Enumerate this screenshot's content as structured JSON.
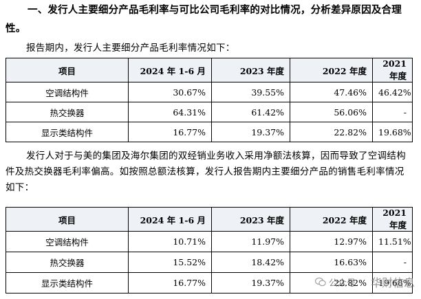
{
  "heading": "一、发行人主要细分产品毛利率与可比公司毛利率的对比情况，分析差异原因及合理性。",
  "intro1": "报告期内，发行人主要细分产品毛利率情况如下：",
  "table1": {
    "headers": [
      "项目",
      "2024 年 1-6 月",
      "2023 年度",
      "2022 年度",
      "2021 年度"
    ],
    "rows": [
      [
        "空调结构件",
        "30.67%",
        "39.55%",
        "47.46%",
        "46.42%"
      ],
      [
        "热交换器",
        "64.31%",
        "61.42%",
        "56.06%",
        "-"
      ],
      [
        "显示类结构件",
        "16.77%",
        "19.37%",
        "22.82%",
        "19.68%"
      ]
    ]
  },
  "intro2": "发行人对于与美的集团及海尔集团的双经销业务收入采用净额法核算，因而导致了空调结构件及热交换器毛利率偏高。如按照总额法核算，发行人报告期内主要细分产品的销售毛利率情况如下：",
  "table2": {
    "headers": [
      "项目",
      "2024 年 1-6 月",
      "2023 年度",
      "2022 年度",
      "2021 年度"
    ],
    "rows": [
      [
        "空调结构件",
        "10.71%",
        "11.97%",
        "12.97%",
        "11.51%"
      ],
      [
        "热交换器",
        "15.52%",
        "18.42%",
        "16.63%",
        "-"
      ],
      [
        "显示类结构件",
        "16.77%",
        "19.37%",
        "22.82%",
        "19.68%"
      ]
    ]
  },
  "watermark": {
    "icon": "wechat-icon",
    "platform": "公众号",
    "separator": "·",
    "name": "华财信息"
  }
}
